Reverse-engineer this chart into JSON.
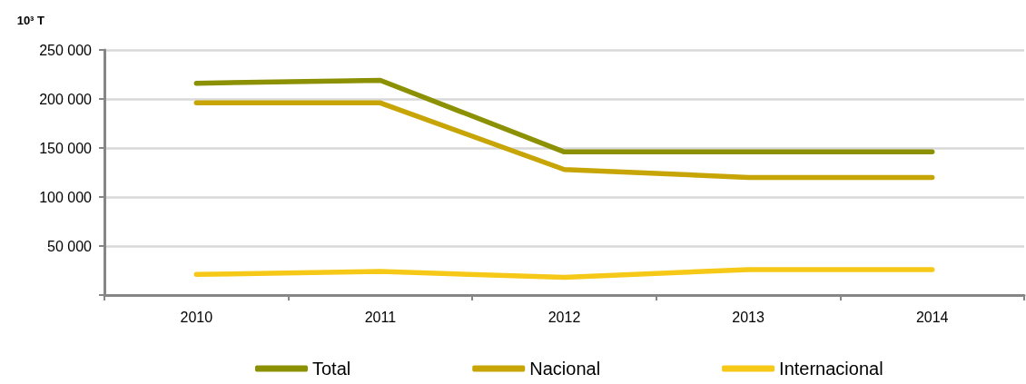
{
  "chart_data": {
    "type": "line",
    "ylabel": "10³ T",
    "categories": [
      "2010",
      "2011",
      "2012",
      "2013",
      "2014"
    ],
    "series": [
      {
        "name": "Total",
        "color": "#8b9103",
        "values": [
          216000,
          219000,
          146000,
          146000,
          146000
        ]
      },
      {
        "name": "Nacional",
        "color": "#c7a506",
        "values": [
          196000,
          196000,
          128000,
          120000,
          120000
        ]
      },
      {
        "name": "Internacional",
        "color": "#f6c918",
        "values": [
          21000,
          24000,
          18000,
          26000,
          26000
        ]
      }
    ],
    "ylim": [
      0,
      250000
    ],
    "yticks": [
      {
        "value": 0,
        "label": null
      },
      {
        "value": 50000,
        "label": "50 000"
      },
      {
        "value": 100000,
        "label": "100 000"
      },
      {
        "value": 150000,
        "label": "150 000"
      },
      {
        "value": 200000,
        "label": "200 000"
      },
      {
        "value": 250000,
        "label": "250 000"
      }
    ],
    "grid": "y",
    "legend": "bottom",
    "marker": "none",
    "line_style": "solid"
  }
}
